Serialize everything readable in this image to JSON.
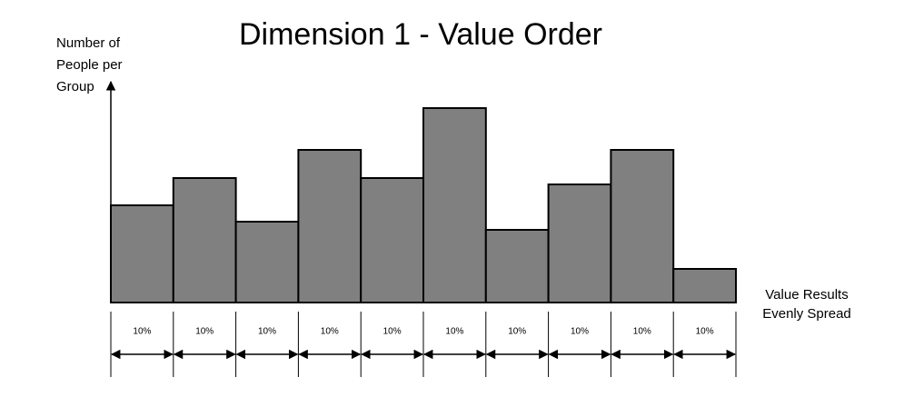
{
  "chart_data": {
    "type": "bar",
    "title": "Dimension 1 - Value Order",
    "y_label": [
      "Number of",
      "People per",
      "Group"
    ],
    "x_label": [
      "Value Results",
      "Evenly Spread"
    ],
    "categories": [
      "10%",
      "10%",
      "10%",
      "10%",
      "10%",
      "10%",
      "10%",
      "10%",
      "10%",
      "10%"
    ],
    "values": [
      107,
      137,
      89,
      168,
      137,
      214,
      80,
      130,
      168,
      37
    ],
    "color": "#808080",
    "ylim": [
      0,
      243
    ]
  }
}
